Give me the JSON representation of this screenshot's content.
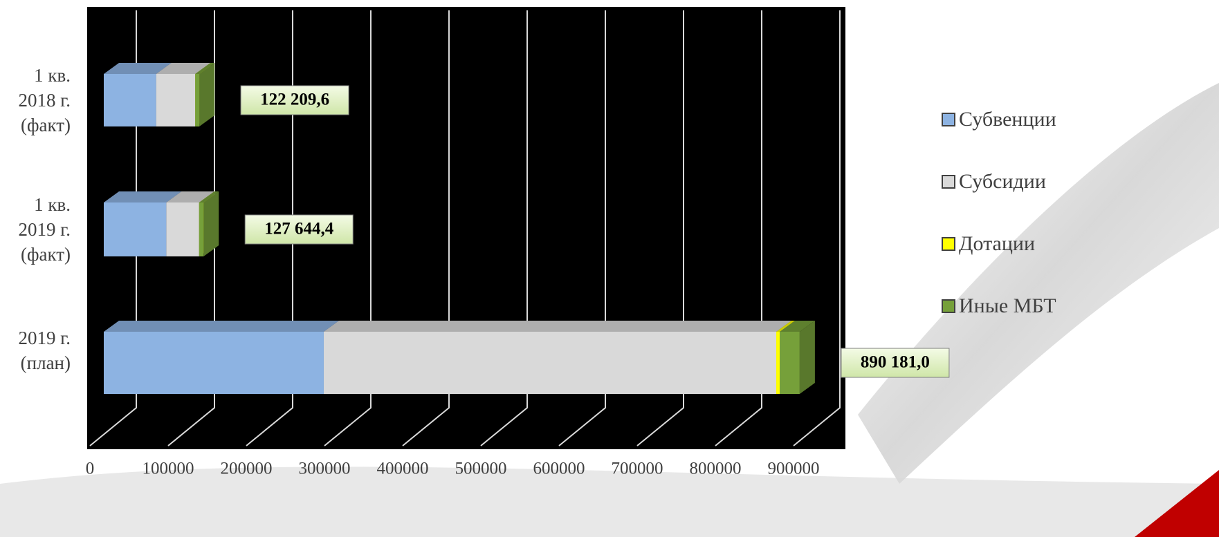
{
  "chart_data": {
    "type": "bar3d_stacked_horizontal",
    "categories": [
      "1 кв.\n2018 г.\n(факт)",
      "1 кв.\n2019 г.\n(факт)",
      "2019 г.\n(план)"
    ],
    "series": [
      {
        "name": "Субвенции",
        "color": "#8db3e2",
        "values": [
          67000,
          80000,
          281400
        ]
      },
      {
        "name": "Субсидии",
        "color": "#d9d9d9",
        "values": [
          50000,
          42000,
          578800
        ]
      },
      {
        "name": "Дотации",
        "color": "#ffff00",
        "values": [
          0,
          0,
          4400
        ]
      },
      {
        "name": "Иные МБТ",
        "color": "#76a03a",
        "values": [
          5209.6,
          5644.4,
          25581
        ]
      }
    ],
    "totals": [
      122209.6,
      127644.4,
      890181.0
    ],
    "totals_labels": [
      "122 209,6",
      "127 644,4",
      "890 181,0"
    ],
    "xlim": [
      0,
      900000
    ],
    "xticks": [
      0,
      100000,
      200000,
      300000,
      400000,
      500000,
      600000,
      700000,
      800000,
      900000
    ],
    "grid": true,
    "legend": "right"
  }
}
